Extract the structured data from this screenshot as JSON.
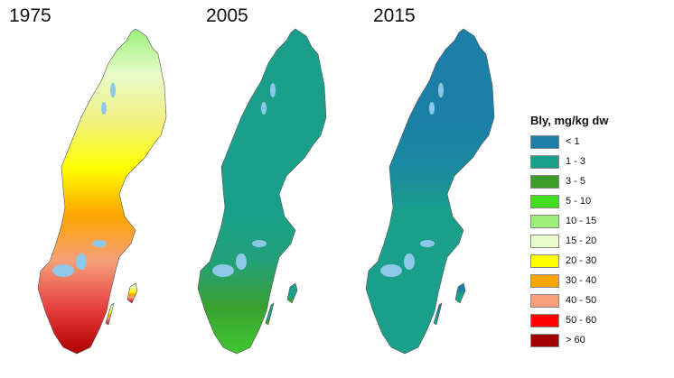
{
  "maps": [
    {
      "year": "1975",
      "gradient": [
        "#9cf07a",
        "#e8fccb",
        "#f2f080",
        "#ffff00",
        "#ffa500",
        "#f5a07a",
        "#e84040",
        "#b00000"
      ]
    },
    {
      "year": "2005",
      "gradient": [
        "#1aa08a",
        "#1aa08a",
        "#1aa08a",
        "#1aa08a",
        "#1aa08a",
        "#22a07a",
        "#3aa030",
        "#40c830"
      ]
    },
    {
      "year": "2015",
      "gradient": [
        "#1b7fa8",
        "#1b7fa8",
        "#1b7fa8",
        "#1a8aa0",
        "#1aa08a",
        "#1aa08a",
        "#1aa08a",
        "#1aa08a"
      ]
    }
  ],
  "legend": {
    "title": "Bly, mg/kg dw",
    "items": [
      {
        "label": "< 1",
        "color": "#1b7fa8"
      },
      {
        "label": "1 - 3",
        "color": "#1aa08a"
      },
      {
        "label": "3 - 5",
        "color": "#3a9e28"
      },
      {
        "label": "5 - 10",
        "color": "#44dd22"
      },
      {
        "label": "10 - 15",
        "color": "#9cf07a"
      },
      {
        "label": "15 - 20",
        "color": "#e8fccb"
      },
      {
        "label": "20 - 30",
        "color": "#ffff00"
      },
      {
        "label": "30 - 40",
        "color": "#ffa500"
      },
      {
        "label": "40 - 50",
        "color": "#f5a07a"
      },
      {
        "label": "50 - 60",
        "color": "#ff0000"
      },
      {
        "label": "> 60",
        "color": "#a00000"
      }
    ]
  }
}
